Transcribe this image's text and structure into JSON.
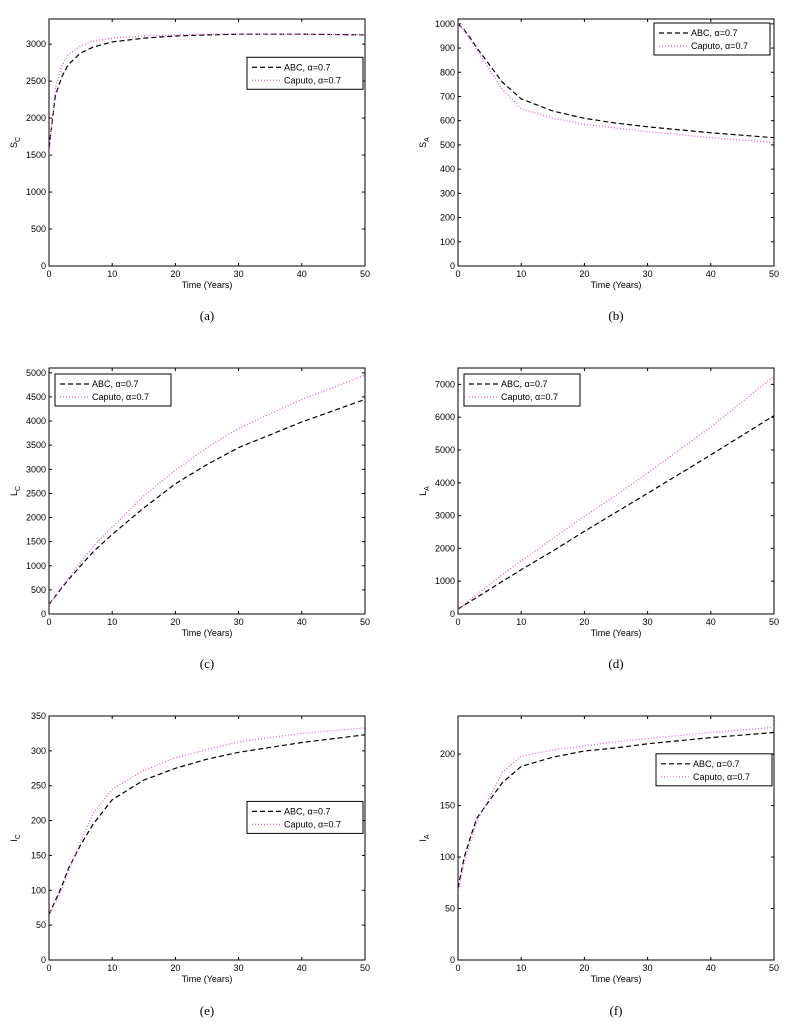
{
  "colors": {
    "abc": "#000000",
    "caputo": "#e060d8"
  },
  "chart_data": [
    {
      "type": "line",
      "caption": "(a)",
      "xlabel": "Time (Years)",
      "ylabel": "S",
      "ylabel_sub": "C",
      "xlim": [
        0,
        50
      ],
      "ylim": [
        0,
        3340
      ],
      "xticks": [
        0,
        10,
        20,
        30,
        40,
        50
      ],
      "yticks": [
        0,
        500,
        1000,
        1500,
        2000,
        2500,
        3000
      ],
      "legend": "right-upper",
      "x": [
        0,
        1,
        2,
        3,
        5,
        7,
        10,
        15,
        20,
        25,
        30,
        40,
        50
      ],
      "series": [
        {
          "name": "ABC, α=0.7",
          "values": [
            1600,
            2300,
            2550,
            2720,
            2880,
            2960,
            3030,
            3080,
            3110,
            3125,
            3135,
            3135,
            3125
          ]
        },
        {
          "name": "Caputo, α=0.7",
          "values": [
            1500,
            2400,
            2700,
            2850,
            2980,
            3040,
            3080,
            3110,
            3125,
            3135,
            3138,
            3135,
            3125
          ]
        }
      ]
    },
    {
      "type": "line",
      "caption": "(b)",
      "xlabel": "Time (Years)",
      "ylabel": "S",
      "ylabel_sub": "A",
      "xlim": [
        0,
        50
      ],
      "ylim": [
        0,
        1020
      ],
      "xticks": [
        0,
        10,
        20,
        30,
        40,
        50
      ],
      "yticks": [
        0,
        100,
        200,
        300,
        400,
        500,
        600,
        700,
        800,
        900,
        1000
      ],
      "legend": "top-right",
      "x": [
        0,
        1,
        2,
        3,
        5,
        7,
        10,
        15,
        20,
        25,
        30,
        40,
        50
      ],
      "series": [
        {
          "name": "ABC, α=0.7",
          "values": [
            1000,
            975,
            940,
            900,
            830,
            760,
            690,
            640,
            610,
            590,
            575,
            550,
            530
          ]
        },
        {
          "name": "Caputo, α=0.7",
          "values": [
            1000,
            970,
            930,
            890,
            810,
            730,
            650,
            610,
            585,
            570,
            555,
            530,
            510
          ]
        }
      ]
    },
    {
      "type": "line",
      "caption": "(c)",
      "xlabel": "Time (Years)",
      "ylabel": "L",
      "ylabel_sub": "C",
      "xlim": [
        0,
        50
      ],
      "ylim": [
        0,
        5100
      ],
      "xticks": [
        0,
        10,
        20,
        30,
        40,
        50
      ],
      "yticks": [
        0,
        500,
        1000,
        1500,
        2000,
        2500,
        3000,
        3500,
        4000,
        4500,
        5000
      ],
      "legend": "top-left",
      "x": [
        0,
        1,
        2,
        3,
        5,
        7,
        10,
        15,
        20,
        25,
        30,
        40,
        50
      ],
      "series": [
        {
          "name": "ABC, α=0.7",
          "values": [
            200,
            370,
            540,
            700,
            1000,
            1290,
            1650,
            2200,
            2700,
            3100,
            3450,
            3980,
            4450
          ]
        },
        {
          "name": "Caputo, α=0.7",
          "values": [
            200,
            380,
            560,
            730,
            1070,
            1400,
            1800,
            2450,
            2980,
            3450,
            3850,
            4450,
            4950
          ]
        }
      ]
    },
    {
      "type": "line",
      "caption": "(d)",
      "xlabel": "Time (Years)",
      "ylabel": "L",
      "ylabel_sub": "A",
      "xlim": [
        0,
        50
      ],
      "ylim": [
        0,
        7500
      ],
      "xticks": [
        0,
        10,
        20,
        30,
        40,
        50
      ],
      "yticks": [
        0,
        1000,
        2000,
        3000,
        4000,
        5000,
        6000,
        7000
      ],
      "legend": "top-left",
      "x": [
        0,
        1,
        2,
        3,
        5,
        7,
        10,
        15,
        20,
        25,
        30,
        40,
        50
      ],
      "series": [
        {
          "name": "ABC, α=0.7",
          "values": [
            150,
            270,
            390,
            510,
            750,
            990,
            1350,
            1920,
            2520,
            3100,
            3680,
            4850,
            6050
          ]
        },
        {
          "name": "Caputo, α=0.7",
          "values": [
            150,
            300,
            450,
            600,
            900,
            1200,
            1620,
            2300,
            2980,
            3620,
            4300,
            5700,
            7250
          ]
        }
      ]
    },
    {
      "type": "line",
      "caption": "(e)",
      "xlabel": "Time (Years)",
      "ylabel": "I",
      "ylabel_sub": "C",
      "xlim": [
        0,
        50
      ],
      "ylim": [
        0,
        350
      ],
      "xticks": [
        0,
        10,
        20,
        30,
        40,
        50
      ],
      "yticks": [
        0,
        50,
        100,
        150,
        200,
        250,
        300,
        350
      ],
      "legend": "right-middle",
      "x": [
        0,
        1,
        2,
        3,
        5,
        7,
        10,
        15,
        20,
        25,
        30,
        40,
        50
      ],
      "series": [
        {
          "name": "ABC, α=0.7",
          "values": [
            65,
            85,
            105,
            130,
            165,
            195,
            230,
            258,
            275,
            288,
            298,
            312,
            323
          ]
        },
        {
          "name": "Caputo, α=0.7",
          "values": [
            65,
            82,
            100,
            125,
            170,
            210,
            245,
            272,
            290,
            302,
            313,
            325,
            333
          ]
        }
      ]
    },
    {
      "type": "line",
      "caption": "(f)",
      "xlabel": "Time (Years)",
      "ylabel": "I",
      "ylabel_sub": "A",
      "xlim": [
        0,
        50
      ],
      "ylim": [
        0,
        237
      ],
      "xticks": [
        0,
        10,
        20,
        30,
        40,
        50
      ],
      "yticks": [
        0,
        50,
        100,
        150,
        200
      ],
      "legend": "right-upper",
      "x": [
        0,
        1,
        2,
        3,
        5,
        7,
        10,
        15,
        20,
        25,
        30,
        40,
        50
      ],
      "series": [
        {
          "name": "ABC, α=0.7",
          "values": [
            70,
            100,
            120,
            138,
            155,
            172,
            188,
            197,
            203,
            206,
            210,
            216,
            221
          ]
        },
        {
          "name": "Caputo, α=0.7",
          "values": [
            65,
            95,
            115,
            135,
            158,
            182,
            198,
            204,
            208,
            212,
            215,
            221,
            226
          ]
        }
      ]
    }
  ]
}
